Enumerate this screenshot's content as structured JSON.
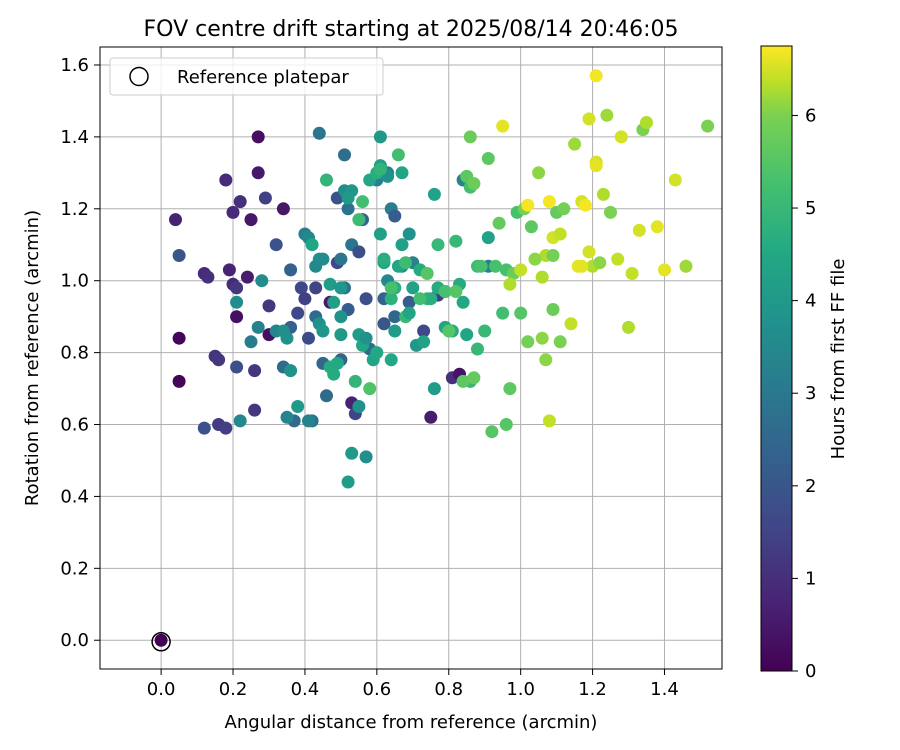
{
  "chart_data": {
    "type": "scatter",
    "title": "FOV centre drift starting at 2025/08/14 20:46:05",
    "xlabel": "Angular distance from reference (arcmin)",
    "ylabel": "Rotation from reference (arcmin)",
    "xlim": [
      -0.17,
      1.56
    ],
    "ylim": [
      -0.08,
      1.65
    ],
    "x_ticks": [
      "0.0",
      "0.2",
      "0.4",
      "0.6",
      "0.8",
      "1.0",
      "1.2",
      "1.4"
    ],
    "y_ticks": [
      "0.0",
      "0.2",
      "0.4",
      "0.6",
      "0.8",
      "1.0",
      "1.2",
      "1.4",
      "1.6"
    ],
    "grid": true,
    "legend": {
      "position": "top-left",
      "entries": [
        "Reference platepar"
      ]
    },
    "reference_point": {
      "x": 0.0,
      "y": 0.0
    },
    "colorbar": {
      "label": "Hours from first FF file",
      "range": [
        0,
        6.75
      ],
      "ticks": [
        "0",
        "1",
        "2",
        "3",
        "4",
        "5",
        "6"
      ],
      "colormap": "viridis"
    },
    "points": [
      [
        0.05,
        0.84,
        0.1
      ],
      [
        0.05,
        0.72,
        0.1
      ],
      [
        0.04,
        1.17,
        0.7
      ],
      [
        0.12,
        1.02,
        0.9
      ],
      [
        0.13,
        1.01,
        1.0
      ],
      [
        0.15,
        0.79,
        1.1
      ],
      [
        0.16,
        0.78,
        1.2
      ],
      [
        0.16,
        0.6,
        1.3
      ],
      [
        0.18,
        0.59,
        1.4
      ],
      [
        0.12,
        0.59,
        1.9
      ],
      [
        0.05,
        1.07,
        2.0
      ],
      [
        0.18,
        1.28,
        0.9
      ],
      [
        0.19,
        1.03,
        0.7
      ],
      [
        0.2,
        0.99,
        0.9
      ],
      [
        0.21,
        0.98,
        1.2
      ],
      [
        0.21,
        0.9,
        0.3
      ],
      [
        0.22,
        1.22,
        1.0
      ],
      [
        0.2,
        1.19,
        0.9
      ],
      [
        0.25,
        1.17,
        0.5
      ],
      [
        0.27,
        1.3,
        0.5
      ],
      [
        0.27,
        1.4,
        0.3
      ],
      [
        0.29,
        1.23,
        1.4
      ],
      [
        0.24,
        1.01,
        0.6
      ],
      [
        0.21,
        0.76,
        1.8
      ],
      [
        0.26,
        0.75,
        1.2
      ],
      [
        0.26,
        0.64,
        1.2
      ],
      [
        0.3,
        0.85,
        0.3
      ],
      [
        0.3,
        0.93,
        1.2
      ],
      [
        0.32,
        1.1,
        1.9
      ],
      [
        0.34,
        1.2,
        0.5
      ],
      [
        0.36,
        1.03,
        2.3
      ],
      [
        0.36,
        0.87,
        2.3
      ],
      [
        0.34,
        0.76,
        2.6
      ],
      [
        0.37,
        0.61,
        2.6
      ],
      [
        0.38,
        0.91,
        1.6
      ],
      [
        0.39,
        0.98,
        1.6
      ],
      [
        0.4,
        0.95,
        1.4
      ],
      [
        0.41,
        0.84,
        1.7
      ],
      [
        0.42,
        0.61,
        2.8
      ],
      [
        0.43,
        0.98,
        1.5
      ],
      [
        0.44,
        1.41,
        2.9
      ],
      [
        0.43,
        0.9,
        2.6
      ],
      [
        0.45,
        0.77,
        2.5
      ],
      [
        0.46,
        0.68,
        2.6
      ],
      [
        0.47,
        0.94,
        0.5
      ],
      [
        0.49,
        1.05,
        1.6
      ],
      [
        0.5,
        1.06,
        2.9
      ],
      [
        0.51,
        0.98,
        2.8
      ],
      [
        0.5,
        0.78,
        2.4
      ],
      [
        0.49,
        1.23,
        1.9
      ],
      [
        0.51,
        1.35,
        2.7
      ],
      [
        0.52,
        1.2,
        2.8
      ],
      [
        0.53,
        1.1,
        2.9
      ],
      [
        0.52,
        0.92,
        2.2
      ],
      [
        0.53,
        0.66,
        0.7
      ],
      [
        0.54,
        0.63,
        1.5
      ],
      [
        0.55,
        1.08,
        1.8
      ],
      [
        0.56,
        1.17,
        2.3
      ],
      [
        0.57,
        0.95,
        1.8
      ],
      [
        0.58,
        0.81,
        2.6
      ],
      [
        0.6,
        1.28,
        3.3
      ],
      [
        0.61,
        1.13,
        4.2
      ],
      [
        0.62,
        0.88,
        2.0
      ],
      [
        0.62,
        0.95,
        2.3
      ],
      [
        0.63,
        1.3,
        3.3
      ],
      [
        0.64,
        1.2,
        3.2
      ],
      [
        0.65,
        1.18,
        2.2
      ],
      [
        0.65,
        0.9,
        2.5
      ],
      [
        0.67,
        1.04,
        3.7
      ],
      [
        0.67,
        1.3,
        4.4
      ],
      [
        0.69,
        0.94,
        2.2
      ],
      [
        0.7,
        1.05,
        3.3
      ],
      [
        0.73,
        0.86,
        1.6
      ],
      [
        0.75,
        0.62,
        0.6
      ],
      [
        0.77,
        0.96,
        1.4
      ],
      [
        0.79,
        0.97,
        2.8
      ],
      [
        0.81,
        0.73,
        1.0
      ],
      [
        0.83,
        0.74,
        0.4
      ],
      [
        0.84,
        1.28,
        3.4
      ],
      [
        0.91,
        1.04,
        3.2
      ],
      [
        0.25,
        0.83,
        3.1
      ],
      [
        0.27,
        0.87,
        3.3
      ],
      [
        0.32,
        0.86,
        3.4
      ],
      [
        0.34,
        0.86,
        3.7
      ],
      [
        0.35,
        0.84,
        3.8
      ],
      [
        0.36,
        0.75,
        3.8
      ],
      [
        0.35,
        0.62,
        3.4
      ],
      [
        0.28,
        1.0,
        3.6
      ],
      [
        0.21,
        0.94,
        3.6
      ],
      [
        0.22,
        0.61,
        3.5
      ],
      [
        0.4,
        1.13,
        3.2
      ],
      [
        0.41,
        1.12,
        3.5
      ],
      [
        0.42,
        1.1,
        4.4
      ],
      [
        0.44,
        1.06,
        3.8
      ],
      [
        0.45,
        1.06,
        3.6
      ],
      [
        0.43,
        1.04,
        3.5
      ],
      [
        0.44,
        0.88,
        3.8
      ],
      [
        0.45,
        0.86,
        3.9
      ],
      [
        0.41,
        0.61,
        3.3
      ],
      [
        0.38,
        0.65,
        4.0
      ],
      [
        0.47,
        0.99,
        4.1
      ],
      [
        0.48,
        0.94,
        4.2
      ],
      [
        0.5,
        0.98,
        3.9
      ],
      [
        0.5,
        0.9,
        3.8
      ],
      [
        0.5,
        0.85,
        4.0
      ],
      [
        0.51,
        1.25,
        3.6
      ],
      [
        0.53,
        1.25,
        3.9
      ],
      [
        0.52,
        1.23,
        4.0
      ],
      [
        0.53,
        0.52,
        4.0
      ],
      [
        0.52,
        0.44,
        4.1
      ],
      [
        0.55,
        0.65,
        3.8
      ],
      [
        0.55,
        0.85,
        4.1
      ],
      [
        0.56,
        0.82,
        4.4
      ],
      [
        0.57,
        0.84,
        3.8
      ],
      [
        0.57,
        0.51,
        3.7
      ],
      [
        0.59,
        0.78,
        4.4
      ],
      [
        0.6,
        0.8,
        4.5
      ],
      [
        0.61,
        1.4,
        4.0
      ],
      [
        0.61,
        1.32,
        4.2
      ],
      [
        0.62,
        1.05,
        4.5
      ],
      [
        0.63,
        1.0,
        3.5
      ],
      [
        0.63,
        1.29,
        3.8
      ],
      [
        0.64,
        0.78,
        4.5
      ],
      [
        0.65,
        0.86,
        4.1
      ],
      [
        0.65,
        0.98,
        4.7
      ],
      [
        0.66,
        1.04,
        4.4
      ],
      [
        0.67,
        1.1,
        4.2
      ],
      [
        0.68,
        0.9,
        5.0
      ],
      [
        0.69,
        0.91,
        4.4
      ],
      [
        0.69,
        1.13,
        3.8
      ],
      [
        0.7,
        0.98,
        4.3
      ],
      [
        0.71,
        0.82,
        3.9
      ],
      [
        0.72,
        1.03,
        4.6
      ],
      [
        0.73,
        0.83,
        4.3
      ],
      [
        0.74,
        0.95,
        4.9
      ],
      [
        0.75,
        0.95,
        4.7
      ],
      [
        0.76,
        0.7,
        4.1
      ],
      [
        0.76,
        1.24,
        4.3
      ],
      [
        0.77,
        0.98,
        4.6
      ],
      [
        0.79,
        0.87,
        4.4
      ],
      [
        0.81,
        0.86,
        4.6
      ],
      [
        0.82,
        1.11,
        5.0
      ],
      [
        0.83,
        0.99,
        4.6
      ],
      [
        0.84,
        0.94,
        4.5
      ],
      [
        0.85,
        0.85,
        4.4
      ],
      [
        0.86,
        0.72,
        5.0
      ],
      [
        0.86,
        1.26,
        5.2
      ],
      [
        0.88,
        0.81,
        5.0
      ],
      [
        0.9,
        0.86,
        5.0
      ],
      [
        0.91,
        1.12,
        4.3
      ],
      [
        0.47,
        0.76,
        4.6
      ],
      [
        0.48,
        0.74,
        4.6
      ],
      [
        0.49,
        0.77,
        4.5
      ],
      [
        0.46,
        1.28,
        4.9
      ],
      [
        0.54,
        0.72,
        4.9
      ],
      [
        0.55,
        1.17,
        5.1
      ],
      [
        0.56,
        1.22,
        5.2
      ],
      [
        0.58,
        1.28,
        4.5
      ],
      [
        0.58,
        0.7,
        5.4
      ],
      [
        0.6,
        1.3,
        4.7
      ],
      [
        0.61,
        1.31,
        4.9
      ],
      [
        0.62,
        1.06,
        4.7
      ],
      [
        0.64,
        0.95,
        4.8
      ],
      [
        0.64,
        0.98,
        5.3
      ],
      [
        0.66,
        1.35,
        5.2
      ],
      [
        0.68,
        1.05,
        5.1
      ],
      [
        0.72,
        0.95,
        5.2
      ],
      [
        0.74,
        1.02,
        5.5
      ],
      [
        0.77,
        1.1,
        5.0
      ],
      [
        0.79,
        0.97,
        5.3
      ],
      [
        0.8,
        0.86,
        5.5
      ],
      [
        0.82,
        0.97,
        5.5
      ],
      [
        0.84,
        0.72,
        5.6
      ],
      [
        0.85,
        1.29,
        5.6
      ],
      [
        0.86,
        1.4,
        5.8
      ],
      [
        0.87,
        0.73,
        5.7
      ],
      [
        0.87,
        1.27,
        5.8
      ],
      [
        0.88,
        1.04,
        5.1
      ],
      [
        0.89,
        1.04,
        5.3
      ],
      [
        0.91,
        1.34,
        5.6
      ],
      [
        0.92,
        0.58,
        5.5
      ],
      [
        0.93,
        1.04,
        5.3
      ],
      [
        0.94,
        1.16,
        5.7
      ],
      [
        0.95,
        0.91,
        5.2
      ],
      [
        0.96,
        1.03,
        5.3
      ],
      [
        0.97,
        0.7,
        5.6
      ],
      [
        0.98,
        1.02,
        5.8
      ],
      [
        0.99,
        1.19,
        5.3
      ],
      [
        1.0,
        0.91,
        5.5
      ],
      [
        1.01,
        1.2,
        5.9
      ],
      [
        1.02,
        0.83,
        5.9
      ],
      [
        1.03,
        1.15,
        5.6
      ],
      [
        1.05,
        1.3,
        6.1
      ],
      [
        1.06,
        0.84,
        6.1
      ],
      [
        1.07,
        1.07,
        6.3
      ],
      [
        1.07,
        0.78,
        6.1
      ],
      [
        1.08,
        0.61,
        6.4
      ],
      [
        1.09,
        0.92,
        5.8
      ],
      [
        1.09,
        1.07,
        5.9
      ],
      [
        1.1,
        1.19,
        5.7
      ],
      [
        1.11,
        0.83,
        6.0
      ],
      [
        1.12,
        1.2,
        5.9
      ],
      [
        1.14,
        0.88,
        6.4
      ],
      [
        1.15,
        1.38,
        6.2
      ],
      [
        1.16,
        1.04,
        6.6
      ],
      [
        1.17,
        1.22,
        6.5
      ],
      [
        1.18,
        1.21,
        6.7
      ],
      [
        1.19,
        1.08,
        6.5
      ],
      [
        1.2,
        1.04,
        6.3
      ],
      [
        1.21,
        1.33,
        6.5
      ],
      [
        1.21,
        1.57,
        6.7
      ],
      [
        1.22,
        1.05,
        6.1
      ],
      [
        1.23,
        1.24,
        6.3
      ],
      [
        1.24,
        1.46,
        6.2
      ],
      [
        1.25,
        1.19,
        6.0
      ],
      [
        1.27,
        1.06,
        6.4
      ],
      [
        1.28,
        1.4,
        6.5
      ],
      [
        1.3,
        0.87,
        6.3
      ],
      [
        1.31,
        1.02,
        6.4
      ],
      [
        1.33,
        1.14,
        6.5
      ],
      [
        1.34,
        1.42,
        6.0
      ],
      [
        1.35,
        1.44,
        6.3
      ],
      [
        1.38,
        1.15,
        6.6
      ],
      [
        1.4,
        1.03,
        6.6
      ],
      [
        1.43,
        1.28,
        6.5
      ],
      [
        1.46,
        1.04,
        6.2
      ],
      [
        1.52,
        1.43,
        6.0
      ],
      [
        0.96,
        0.6,
        5.5
      ],
      [
        0.97,
        0.99,
        6.3
      ],
      [
        0.95,
        1.43,
        6.6
      ],
      [
        1.0,
        1.03,
        6.4
      ],
      [
        1.02,
        1.21,
        6.7
      ],
      [
        1.04,
        1.06,
        6.1
      ],
      [
        1.06,
        1.01,
        6.3
      ],
      [
        1.08,
        1.22,
        6.7
      ],
      [
        1.09,
        1.12,
        6.5
      ],
      [
        1.11,
        1.13,
        6.4
      ],
      [
        1.17,
        1.04,
        6.6
      ],
      [
        1.19,
        1.45,
        6.5
      ],
      [
        1.21,
        1.32,
        6.6
      ]
    ]
  }
}
